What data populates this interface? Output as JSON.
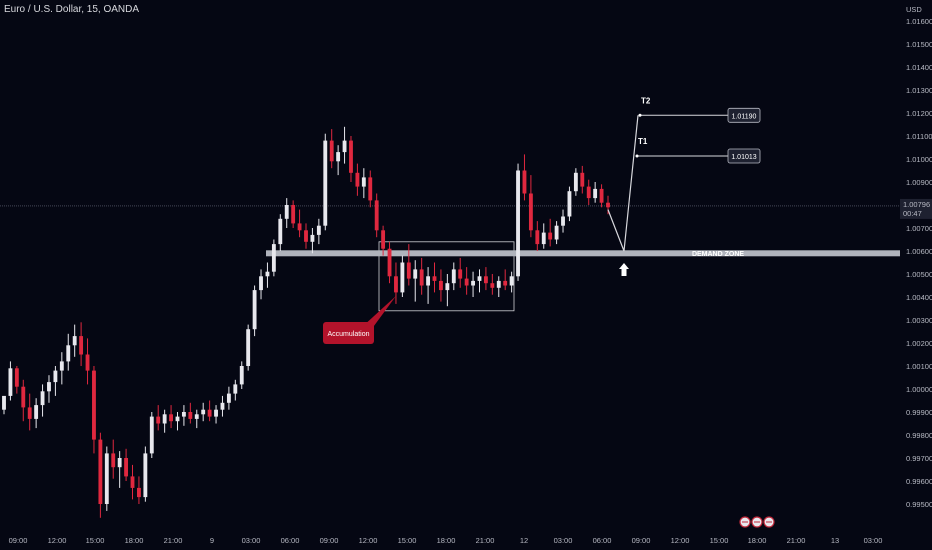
{
  "header": {
    "symbol_title": "Euro / U.S. Dollar, 15, OANDA",
    "currency": "USD"
  },
  "chart_data": {
    "type": "candlestick",
    "title": "Euro / U.S. Dollar, 15, OANDA",
    "ylabel": "USD",
    "ylim": [
      0.9945,
      1.0166
    ],
    "y_ticks": [
      "1.01600",
      "1.01500",
      "1.01400",
      "1.01300",
      "1.01200",
      "1.01100",
      "1.01000",
      "1.00900",
      "1.00700",
      "1.00600",
      "1.00500",
      "1.00400",
      "1.00300",
      "1.00200",
      "1.00100",
      "1.00000",
      "0.99900",
      "0.99800",
      "0.99700",
      "0.99600",
      "0.99500"
    ],
    "x_ticks": [
      "09:00",
      "12:00",
      "15:00",
      "18:00",
      "21:00",
      "9",
      "03:00",
      "06:00",
      "09:00",
      "12:00",
      "15:00",
      "18:00",
      "21:00",
      "12",
      "03:00",
      "06:00",
      "09:00",
      "12:00",
      "15:00",
      "18:00",
      "21:00",
      "13",
      "03:00"
    ],
    "current_price": "1.00796",
    "countdown": "00:47",
    "demand_zone": {
      "label": "DEMAND ZONE",
      "price": 1.0059
    },
    "accumulation": {
      "label": "Accumulation",
      "price_low": 1.0034,
      "price_high": 1.0064
    },
    "targets": [
      {
        "name": "T1",
        "price": 1.01013,
        "label": "1.01013"
      },
      {
        "name": "T2",
        "price": 1.0119,
        "label": "1.01190"
      }
    ],
    "projection": [
      {
        "time": "06:15 12th",
        "price": 1.0078
      },
      {
        "time": "07:45 12th",
        "price": 1.006
      },
      {
        "time": "08:45 12th",
        "price": 1.0119
      }
    ],
    "colors": {
      "up": "#e8e8ee",
      "down": "#e0283f",
      "background": "#050713",
      "zone": "#b0b3bc",
      "accumulation_label_bg": "#b3132b"
    },
    "candles": [
      [
        0.9991,
        0.99965,
        0.9989,
        0.9997
      ],
      [
        0.9997,
        1.0012,
        0.9995,
        1.0009
      ],
      [
        1.0009,
        1.001,
        0.9998,
        1.0001
      ],
      [
        1.0001,
        1.0004,
        0.9986,
        0.9992
      ],
      [
        0.9992,
        0.9998,
        0.9982,
        0.9987
      ],
      [
        0.9987,
        0.9996,
        0.9983,
        0.9993
      ],
      [
        0.9993,
        1.0002,
        0.9988,
        0.9999
      ],
      [
        0.9999,
        1.0006,
        0.9994,
        1.0003
      ],
      [
        1.0003,
        1.001,
        0.9997,
        1.0008
      ],
      [
        1.0008,
        1.0016,
        1.0002,
        1.0012
      ],
      [
        1.0012,
        1.0024,
        1.0008,
        1.0019
      ],
      [
        1.0019,
        1.0028,
        1.0014,
        1.0023
      ],
      [
        1.0023,
        1.0029,
        1.001,
        1.0015
      ],
      [
        1.0015,
        1.0022,
        1.0002,
        1.0008
      ],
      [
        1.0008,
        1.001,
        0.9972,
        0.9978
      ],
      [
        0.9978,
        0.9981,
        0.9944,
        0.995
      ],
      [
        0.995,
        0.9975,
        0.9947,
        0.9972
      ],
      [
        0.9972,
        0.9978,
        0.9961,
        0.9966
      ],
      [
        0.9966,
        0.9973,
        0.9957,
        0.997
      ],
      [
        0.997,
        0.9974,
        0.996,
        0.9962
      ],
      [
        0.9962,
        0.9967,
        0.9952,
        0.9957
      ],
      [
        0.9957,
        0.9962,
        0.995,
        0.9953
      ],
      [
        0.9953,
        0.9975,
        0.9951,
        0.9972
      ],
      [
        0.9972,
        0.999,
        0.997,
        0.9988
      ],
      [
        0.9988,
        0.9993,
        0.9982,
        0.9985
      ],
      [
        0.9985,
        0.9991,
        0.9981,
        0.9989
      ],
      [
        0.9989,
        0.9993,
        0.9983,
        0.9986
      ],
      [
        0.9986,
        0.999,
        0.9982,
        0.9988
      ],
      [
        0.9988,
        0.9993,
        0.9984,
        0.999
      ],
      [
        0.999,
        0.9994,
        0.9985,
        0.9987
      ],
      [
        0.9987,
        0.9991,
        0.9983,
        0.9989
      ],
      [
        0.9989,
        0.9994,
        0.9986,
        0.9991
      ],
      [
        0.9991,
        0.9995,
        0.9986,
        0.9988
      ],
      [
        0.9988,
        0.9993,
        0.9985,
        0.9991
      ],
      [
        0.9991,
        0.9997,
        0.9988,
        0.9994
      ],
      [
        0.9994,
        1.0001,
        0.9991,
        0.9998
      ],
      [
        0.9998,
        1.0004,
        0.9995,
        1.0002
      ],
      [
        1.0002,
        1.0012,
        1.0,
        1.001
      ],
      [
        1.001,
        1.0028,
        1.0008,
        1.0026
      ],
      [
        1.0026,
        1.0045,
        1.0023,
        1.0043
      ],
      [
        1.0043,
        1.0052,
        1.0039,
        1.0049
      ],
      [
        1.0049,
        1.0055,
        1.0044,
        1.0051
      ],
      [
        1.0051,
        1.0065,
        1.0049,
        1.0063
      ],
      [
        1.0063,
        1.0076,
        1.006,
        1.0074
      ],
      [
        1.0074,
        1.0083,
        1.007,
        1.008
      ],
      [
        1.008,
        1.0082,
        1.007,
        1.0072
      ],
      [
        1.0072,
        1.0078,
        1.0066,
        1.0069
      ],
      [
        1.0069,
        1.0072,
        1.0061,
        1.0064
      ],
      [
        1.0064,
        1.007,
        1.0059,
        1.0067
      ],
      [
        1.0067,
        1.0074,
        1.0063,
        1.0071
      ],
      [
        1.0071,
        1.0111,
        1.0069,
        1.0108
      ],
      [
        1.0108,
        1.0113,
        1.0096,
        1.0099
      ],
      [
        1.0099,
        1.0106,
        1.0093,
        1.0103
      ],
      [
        1.0103,
        1.0114,
        1.0098,
        1.0108
      ],
      [
        1.0108,
        1.011,
        1.009,
        1.0094
      ],
      [
        1.0094,
        1.0098,
        1.0084,
        1.0088
      ],
      [
        1.0088,
        1.0096,
        1.0083,
        1.0092
      ],
      [
        1.0092,
        1.0095,
        1.0079,
        1.0082
      ],
      [
        1.0082,
        1.0085,
        1.0066,
        1.0069
      ],
      [
        1.0069,
        1.0071,
        1.0058,
        1.0061
      ],
      [
        1.0061,
        1.0064,
        1.0046,
        1.0049
      ],
      [
        1.0049,
        1.0055,
        1.0037,
        1.0042
      ],
      [
        1.0042,
        1.0058,
        1.004,
        1.0055
      ],
      [
        1.0055,
        1.0063,
        1.0045,
        1.0048
      ],
      [
        1.0048,
        1.0056,
        1.0038,
        1.0052
      ],
      [
        1.0052,
        1.0057,
        1.0041,
        1.0045
      ],
      [
        1.0045,
        1.0053,
        1.0037,
        1.0049
      ],
      [
        1.0049,
        1.0055,
        1.0042,
        1.0047
      ],
      [
        1.0047,
        1.0052,
        1.0038,
        1.0043
      ],
      [
        1.0043,
        1.005,
        1.0036,
        1.0046
      ],
      [
        1.0046,
        1.0055,
        1.0043,
        1.0052
      ],
      [
        1.0052,
        1.0057,
        1.0044,
        1.0048
      ],
      [
        1.0048,
        1.0053,
        1.0041,
        1.0045
      ],
      [
        1.0045,
        1.0051,
        1.004,
        1.0047
      ],
      [
        1.0047,
        1.0052,
        1.0042,
        1.0049
      ],
      [
        1.0049,
        1.0053,
        1.0043,
        1.0046
      ],
      [
        1.0046,
        1.005,
        1.0041,
        1.0044
      ],
      [
        1.0044,
        1.0049,
        1.004,
        1.0047
      ],
      [
        1.0047,
        1.0052,
        1.0043,
        1.0045
      ],
      [
        1.0045,
        1.0051,
        1.0042,
        1.0049
      ],
      [
        1.0049,
        1.0098,
        1.0047,
        1.0095
      ],
      [
        1.0095,
        1.0102,
        1.0082,
        1.0085
      ],
      [
        1.0085,
        1.0093,
        1.0066,
        1.0069
      ],
      [
        1.0069,
        1.0073,
        1.006,
        1.0063
      ],
      [
        1.0063,
        1.0072,
        1.0061,
        1.0068
      ],
      [
        1.0068,
        1.0074,
        1.0062,
        1.0065
      ],
      [
        1.0065,
        1.0073,
        1.0063,
        1.0071
      ],
      [
        1.0071,
        1.0078,
        1.0068,
        1.0075
      ],
      [
        1.0075,
        1.0088,
        1.0073,
        1.0086
      ],
      [
        1.0086,
        1.0096,
        1.0084,
        1.0094
      ],
      [
        1.0094,
        1.0097,
        1.0085,
        1.0088
      ],
      [
        1.0088,
        1.0091,
        1.008,
        1.0083
      ],
      [
        1.0083,
        1.009,
        1.0081,
        1.0087
      ],
      [
        1.0087,
        1.0089,
        1.0079,
        1.0081
      ],
      [
        1.0081,
        1.0084,
        1.0076,
        1.0079
      ]
    ]
  }
}
